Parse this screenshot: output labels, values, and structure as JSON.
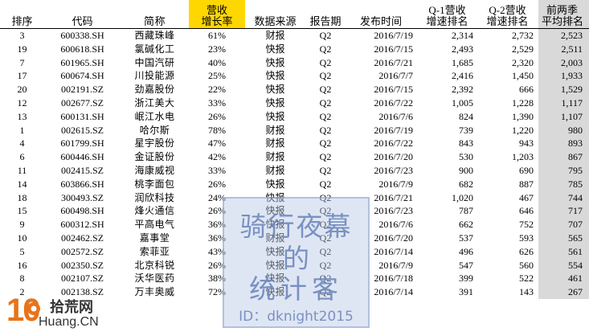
{
  "table": {
    "headers": {
      "rank": "排序",
      "code": "代码",
      "name": "简称",
      "growth_line1": "营收",
      "growth_line2": "增长率",
      "source": "数据来源",
      "period": "报告期",
      "date": "发布时间",
      "q1_line1": "Q-1营收",
      "q1_line2": "增速排名",
      "q2_line1": "Q-2营收",
      "q2_line2": "增速排名",
      "avg_line1": "前两季",
      "avg_line2": "平均排名"
    },
    "rows": [
      {
        "rank": "3",
        "code": "600338.SH",
        "name": "西藏珠峰",
        "growth": "61%",
        "source": "财报",
        "period": "Q2",
        "date": "2016/7/19",
        "q1": "2,314",
        "q2": "2,732",
        "avg": "2,523"
      },
      {
        "rank": "19",
        "code": "600618.SH",
        "name": "氯碱化工",
        "growth": "23%",
        "source": "快报",
        "period": "Q2",
        "date": "2016/7/15",
        "q1": "2,493",
        "q2": "2,529",
        "avg": "2,511"
      },
      {
        "rank": "7",
        "code": "601965.SH",
        "name": "中国汽研",
        "growth": "40%",
        "source": "快报",
        "period": "Q2",
        "date": "2016/7/21",
        "q1": "1,685",
        "q2": "2,320",
        "avg": "2,003"
      },
      {
        "rank": "17",
        "code": "600674.SH",
        "name": "川投能源",
        "growth": "25%",
        "source": "快报",
        "period": "Q2",
        "date": "2016/7/7",
        "q1": "2,416",
        "q2": "1,450",
        "avg": "1,933"
      },
      {
        "rank": "20",
        "code": "002191.SZ",
        "name": "劲嘉股份",
        "growth": "22%",
        "source": "快报",
        "period": "Q2",
        "date": "2016/7/15",
        "q1": "2,392",
        "q2": "666",
        "avg": "1,529"
      },
      {
        "rank": "12",
        "code": "002677.SZ",
        "name": "浙江美大",
        "growth": "33%",
        "source": "快报",
        "period": "Q2",
        "date": "2016/7/22",
        "q1": "1,005",
        "q2": "1,228",
        "avg": "1,117"
      },
      {
        "rank": "13",
        "code": "600131.SH",
        "name": "岷江水电",
        "growth": "26%",
        "source": "快报",
        "period": "Q2",
        "date": "2016/7/6",
        "q1": "824",
        "q2": "1,390",
        "avg": "1,107"
      },
      {
        "rank": "1",
        "code": "002615.SZ",
        "name": "哈尔斯",
        "growth": "78%",
        "source": "财报",
        "period": "Q2",
        "date": "2016/7/19",
        "q1": "739",
        "q2": "1,220",
        "avg": "980"
      },
      {
        "rank": "4",
        "code": "601799.SH",
        "name": "星宇股份",
        "growth": "47%",
        "source": "财报",
        "period": "Q2",
        "date": "2016/7/22",
        "q1": "843",
        "q2": "943",
        "avg": "893"
      },
      {
        "rank": "6",
        "code": "600446.SH",
        "name": "金证股份",
        "growth": "42%",
        "source": "财报",
        "period": "Q2",
        "date": "2016/7/20",
        "q1": "530",
        "q2": "1,203",
        "avg": "867"
      },
      {
        "rank": "11",
        "code": "002415.SZ",
        "name": "海康威视",
        "growth": "33%",
        "source": "财报",
        "period": "Q2",
        "date": "2016/7/23",
        "q1": "900",
        "q2": "690",
        "avg": "795"
      },
      {
        "rank": "14",
        "code": "603866.SH",
        "name": "桃李面包",
        "growth": "26%",
        "source": "快报",
        "period": "Q2",
        "date": "2016/7/9",
        "q1": "682",
        "q2": "887",
        "avg": "785"
      },
      {
        "rank": "18",
        "code": "300493.SZ",
        "name": "润欣科技",
        "growth": "24%",
        "source": "快报",
        "period": "Q2",
        "date": "2016/7/21",
        "q1": "1,020",
        "q2": "467",
        "avg": "744"
      },
      {
        "rank": "15",
        "code": "600498.SH",
        "name": "烽火通信",
        "growth": "26%",
        "source": "快报",
        "period": "Q2",
        "date": "2016/7/23",
        "q1": "787",
        "q2": "646",
        "avg": "717"
      },
      {
        "rank": "9",
        "code": "600312.SH",
        "name": "平高电气",
        "growth": "36%",
        "source": "快报",
        "period": "Q2",
        "date": "2016/7/6",
        "q1": "662",
        "q2": "752",
        "avg": "707"
      },
      {
        "rank": "10",
        "code": "002462.SZ",
        "name": "嘉事堂",
        "growth": "36%",
        "source": "财报",
        "period": "Q2",
        "date": "2016/7/20",
        "q1": "537",
        "q2": "593",
        "avg": "565"
      },
      {
        "rank": "5",
        "code": "002572.SZ",
        "name": "索菲亚",
        "growth": "43%",
        "source": "快报",
        "period": "Q2",
        "date": "2016/7/14",
        "q1": "496",
        "q2": "626",
        "avg": "561"
      },
      {
        "rank": "16",
        "code": "002350.SZ",
        "name": "北京科锐",
        "growth": "26%",
        "source": "快报",
        "period": "Q2",
        "date": "2016/7/9",
        "q1": "547",
        "q2": "560",
        "avg": "554"
      },
      {
        "rank": "8",
        "code": "002107.SZ",
        "name": "沃华医药",
        "growth": "38%",
        "source": "快报",
        "period": "Q2",
        "date": "2016/7/18",
        "q1": "399",
        "q2": "522",
        "avg": "461"
      },
      {
        "rank": "2",
        "code": "002138.SZ",
        "name": "万丰奥威",
        "growth": "72%",
        "source": "快报",
        "period": "Q2",
        "date": "2016/7/14",
        "q1": "391",
        "q2": "143",
        "avg": "267"
      }
    ]
  },
  "watermark": {
    "line1": "骑行夜幕",
    "line2": "的",
    "line3": "统计客",
    "line4": "ID：dknight2015"
  },
  "logo": {
    "number": "10",
    "name": "拾荒网",
    "domain": "Huang.CN"
  },
  "colors": {
    "growth_header_bg": "#ffd700",
    "avg_column_bg": "#d9d9d9",
    "logo_orange": "#e8731a"
  }
}
